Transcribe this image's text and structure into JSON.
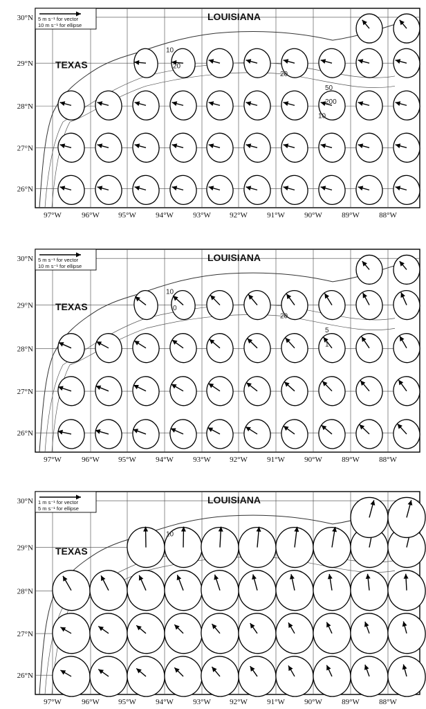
{
  "panels": [
    {
      "legend_vector": "5 m s⁻¹ for vector",
      "legend_ellipse": "10 m s⁻¹ for ellipse",
      "isobaths": [
        "10",
        "20",
        "20",
        "50",
        "200",
        "10"
      ]
    },
    {
      "legend_vector": "5 m s⁻¹ for vector",
      "legend_ellipse": "10 m s⁻¹ for ellipse",
      "isobaths": [
        "10",
        "0",
        "20",
        "5",
        "1"
      ]
    },
    {
      "legend_vector": "1 m s⁻¹ for vector",
      "legend_ellipse": "5 m s⁻¹ for ellipse",
      "isobaths": [
        "10"
      ]
    }
  ],
  "labels": {
    "state_north": "LOUISIANA",
    "state_west": "TEXAS"
  },
  "lon_ticks": [
    "97°W",
    "96°W",
    "95°W",
    "94°W",
    "93°W",
    "92°W",
    "91°W",
    "90°W",
    "89°W",
    "88°W"
  ],
  "lat_ticks": [
    "30°N",
    "29°N",
    "28°N",
    "27°N",
    "26°N"
  ]
}
